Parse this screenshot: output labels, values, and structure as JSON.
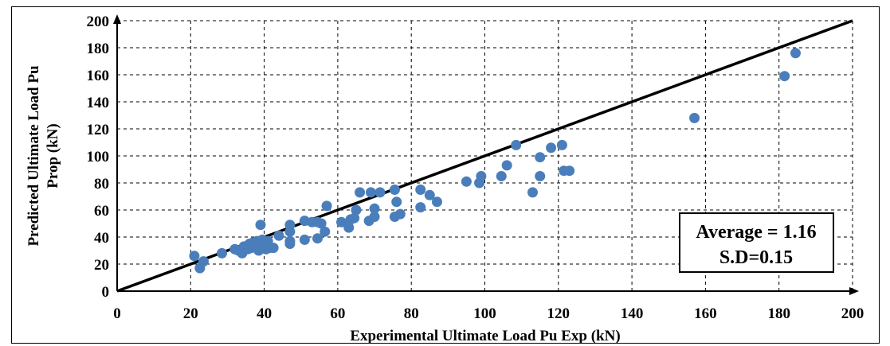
{
  "chart_data": {
    "type": "scatter",
    "xlabel": "Experimental Ultimate Load Pu Exp (kN)",
    "ylabel_line1": "Predicted Ultimate Load Pu",
    "ylabel_line2": "Prop (kN)",
    "xlim": [
      0,
      200
    ],
    "ylim": [
      0,
      200
    ],
    "x_ticks": [
      "0",
      "20",
      "40",
      "60",
      "80",
      "100",
      "120",
      "140",
      "160",
      "180",
      "200"
    ],
    "y_ticks": [
      "0",
      "20",
      "40",
      "60",
      "80",
      "100",
      "120",
      "140",
      "160",
      "180",
      "200"
    ],
    "grid": true,
    "reference_line": {
      "from": [
        0,
        0
      ],
      "to": [
        200,
        200
      ]
    },
    "marker_color": "#4a7ebb",
    "annotation": {
      "line1": "Average = 1.16",
      "line2": "S.D=0.15"
    },
    "points": [
      [
        21,
        26
      ],
      [
        22.5,
        17
      ],
      [
        23.5,
        22
      ],
      [
        28.5,
        28
      ],
      [
        32,
        31
      ],
      [
        33,
        30
      ],
      [
        34,
        28
      ],
      [
        34.5,
        33
      ],
      [
        35.5,
        31
      ],
      [
        36,
        35
      ],
      [
        36.5,
        32
      ],
      [
        37,
        36
      ],
      [
        38,
        37
      ],
      [
        38.5,
        30
      ],
      [
        39,
        49
      ],
      [
        39.5,
        38
      ],
      [
        40,
        34
      ],
      [
        40.5,
        31
      ],
      [
        41,
        37
      ],
      [
        41.5,
        32
      ],
      [
        42.5,
        32
      ],
      [
        44,
        41
      ],
      [
        47,
        49
      ],
      [
        47,
        44
      ],
      [
        47,
        37
      ],
      [
        47,
        35
      ],
      [
        51,
        52
      ],
      [
        51,
        38
      ],
      [
        53,
        51
      ],
      [
        54.5,
        51
      ],
      [
        54.5,
        39
      ],
      [
        55.5,
        50
      ],
      [
        56.5,
        44
      ],
      [
        57,
        63
      ],
      [
        61,
        51
      ],
      [
        63,
        47
      ],
      [
        63.5,
        53
      ],
      [
        64.5,
        54
      ],
      [
        65,
        60
      ],
      [
        66,
        73
      ],
      [
        68.5,
        52
      ],
      [
        69,
        73
      ],
      [
        70,
        61
      ],
      [
        70,
        55
      ],
      [
        71.5,
        73
      ],
      [
        75.5,
        75
      ],
      [
        76,
        66
      ],
      [
        75.5,
        55
      ],
      [
        77,
        57
      ],
      [
        82.5,
        75
      ],
      [
        82.5,
        62
      ],
      [
        85,
        71
      ],
      [
        87,
        66
      ],
      [
        95,
        81
      ],
      [
        98.5,
        80
      ],
      [
        99,
        85
      ],
      [
        104.5,
        85
      ],
      [
        106,
        93
      ],
      [
        108.5,
        108
      ],
      [
        113,
        73
      ],
      [
        115,
        99
      ],
      [
        115,
        85
      ],
      [
        118,
        106
      ],
      [
        121,
        108
      ],
      [
        121.5,
        89
      ],
      [
        123,
        89
      ],
      [
        157,
        128
      ],
      [
        181.5,
        159
      ],
      [
        184.5,
        176
      ]
    ]
  }
}
